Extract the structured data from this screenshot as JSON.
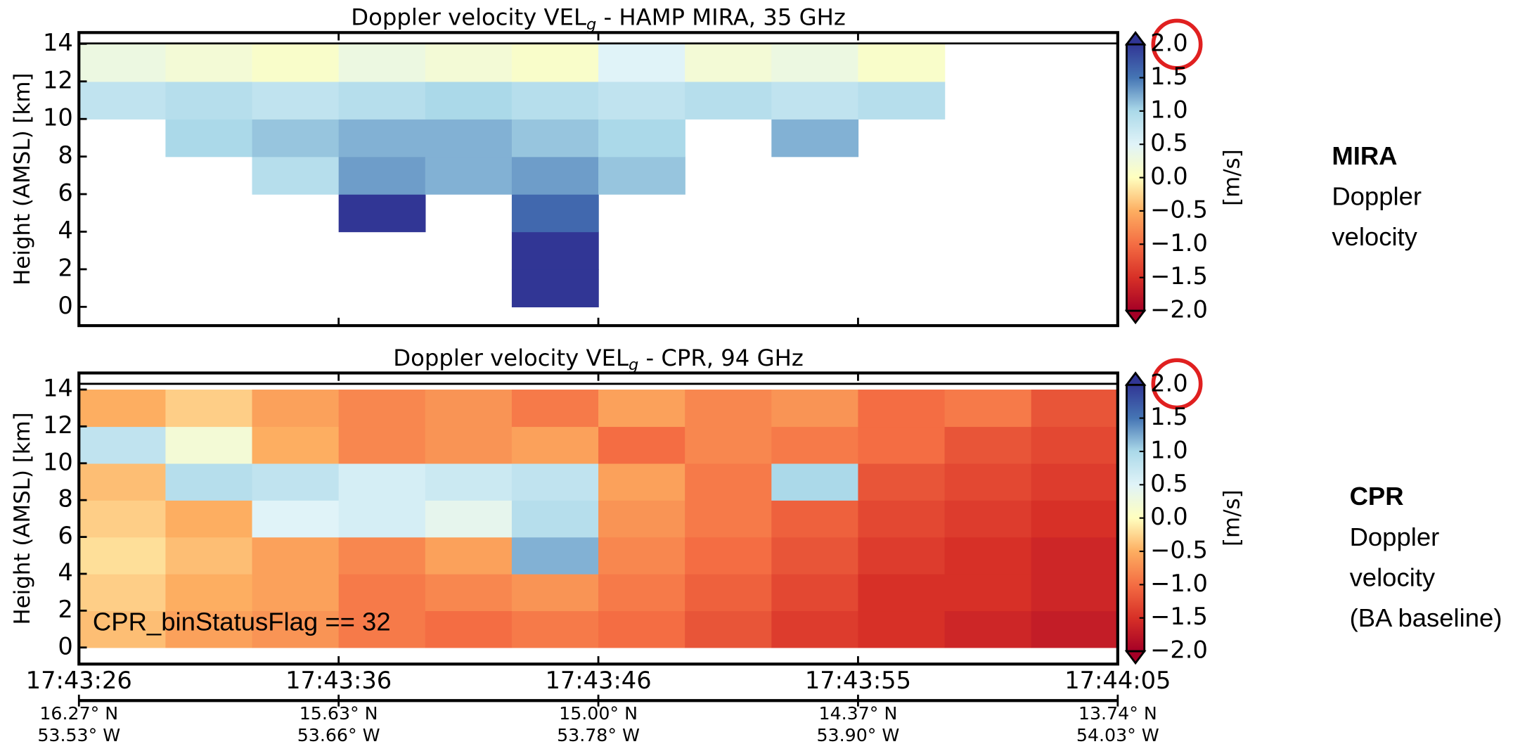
{
  "chart_data": [
    {
      "type": "heatmap",
      "title": {
        "text": "Doppler velocity VEL",
        "sub": "g",
        "rest": " - HAMP MIRA, 35 GHz"
      },
      "ylabel": "Height (AMSL) [km]",
      "ylim": [
        -1,
        14.6
      ],
      "yticks": [
        0,
        2,
        4,
        6,
        8,
        10,
        12,
        14
      ],
      "y_bins": [
        0,
        2,
        4,
        6,
        8,
        10,
        12,
        14
      ],
      "values": [
        [
          null,
          null,
          null,
          null,
          null,
          2.0,
          null,
          null,
          null,
          null,
          null,
          null
        ],
        [
          null,
          null,
          null,
          null,
          null,
          2.0,
          null,
          null,
          null,
          null,
          null,
          null
        ],
        [
          null,
          null,
          null,
          2.0,
          null,
          1.6,
          null,
          null,
          null,
          null,
          null,
          null
        ],
        [
          null,
          null,
          0.9,
          1.3,
          1.2,
          1.3,
          1.1,
          null,
          null,
          null,
          null,
          null
        ],
        [
          null,
          1.0,
          1.1,
          1.2,
          1.2,
          1.1,
          1.0,
          null,
          1.2,
          null,
          null,
          null
        ],
        [
          0.8,
          0.9,
          0.8,
          0.9,
          1.0,
          0.9,
          0.8,
          0.9,
          0.8,
          0.9,
          null,
          null
        ],
        [
          0.3,
          0.2,
          0.1,
          0.3,
          0.2,
          0.1,
          0.5,
          0.2,
          0.3,
          0.1,
          null,
          null
        ]
      ],
      "clim": [
        -2,
        2
      ],
      "cticks": [
        {
          "value": -2,
          "label": "−2.0"
        },
        {
          "value": -1.5,
          "label": "−1.5"
        },
        {
          "value": -1,
          "label": "−1.0"
        },
        {
          "value": -0.5,
          "label": "−0.5"
        },
        {
          "value": 0,
          "label": "0.0"
        },
        0.5,
        {
          "value": 1,
          "label": "1.0"
        },
        1.5,
        {
          "value": 2,
          "label": "2.0"
        }
      ],
      "cbar_label": "[m/s]",
      "colormap": [
        "#a50026",
        "#d73027",
        "#f46d43",
        "#fdae61",
        "#ffffbf",
        "#e0f3f8",
        "#abd9e9",
        "#4575b4",
        "#313695"
      ],
      "side_label": [
        "MIRA",
        "Doppler",
        "velocity"
      ]
    },
    {
      "type": "heatmap",
      "title": {
        "text": "Doppler velocity VEL",
        "sub": "g",
        "rest": " - CPR, 94 GHz"
      },
      "ylabel": "Height (AMSL) [km]",
      "ylim": [
        -0.9,
        14.9
      ],
      "yticks": [
        0,
        2,
        4,
        6,
        8,
        10,
        12,
        14
      ],
      "y_bins": [
        0,
        2,
        4,
        6,
        8,
        10,
        12,
        14
      ],
      "values": [
        [
          -0.4,
          -0.6,
          -0.7,
          -0.9,
          -1.0,
          -0.9,
          -1.0,
          -1.2,
          -1.4,
          -1.5,
          -1.6,
          -1.7
        ],
        [
          -0.3,
          -0.5,
          -0.6,
          -0.9,
          -0.8,
          -0.7,
          -0.9,
          -1.1,
          -1.3,
          -1.5,
          -1.5,
          -1.6
        ],
        [
          -0.2,
          -0.4,
          -0.6,
          -0.8,
          -0.6,
          1.2,
          -0.8,
          -1.0,
          -1.2,
          -1.4,
          -1.5,
          -1.6
        ],
        [
          -0.3,
          -0.5,
          0.5,
          0.6,
          0.4,
          0.9,
          -0.7,
          -0.9,
          -1.1,
          -1.3,
          -1.4,
          -1.5
        ],
        [
          -0.4,
          0.9,
          0.8,
          0.6,
          0.7,
          0.8,
          -0.6,
          -0.9,
          1.0,
          -1.2,
          -1.3,
          -1.4
        ],
        [
          0.8,
          0.2,
          -0.5,
          -0.8,
          -0.7,
          -0.6,
          -1.0,
          -0.8,
          -0.9,
          -1.0,
          -1.2,
          -1.3
        ],
        [
          -0.5,
          -0.3,
          -0.6,
          -0.8,
          -0.7,
          -0.9,
          -0.6,
          -0.8,
          -0.7,
          -1.0,
          -0.9,
          -1.2
        ]
      ],
      "clim": [
        -2,
        2
      ],
      "cticks": [
        {
          "value": -2,
          "label": "−2.0"
        },
        {
          "value": -1.5,
          "label": "−1.5"
        },
        {
          "value": -1,
          "label": "−1.0"
        },
        {
          "value": -0.5,
          "label": "−0.5"
        },
        {
          "value": 0,
          "label": "0.0"
        },
        0.5,
        {
          "value": 1,
          "label": "1.0"
        },
        1.5,
        {
          "value": 2,
          "label": "2.0"
        }
      ],
      "cbar_label": "[m/s]",
      "colormap": [
        "#a50026",
        "#d73027",
        "#f46d43",
        "#fdae61",
        "#ffffbf",
        "#e0f3f8",
        "#abd9e9",
        "#4575b4",
        "#313695"
      ],
      "annotation": "CPR_binStatusFlag == 32",
      "side_label": [
        "CPR",
        "Doppler",
        "velocity",
        "(BA baseline)"
      ],
      "xticks": [
        {
          "time": "17:43:26",
          "lat": "16.27° N",
          "lon": "53.53° W"
        },
        {
          "time": "17:43:36",
          "lat": "15.63° N",
          "lon": "53.66° W"
        },
        {
          "time": "17:43:46",
          "lat": "15.00° N",
          "lon": "53.78° W"
        },
        {
          "time": "17:43:55",
          "lat": "14.37° N",
          "lon": "53.90° W"
        },
        {
          "time": "17:44:05",
          "lat": "13.74° N",
          "lon": "54.03° W"
        }
      ]
    }
  ]
}
